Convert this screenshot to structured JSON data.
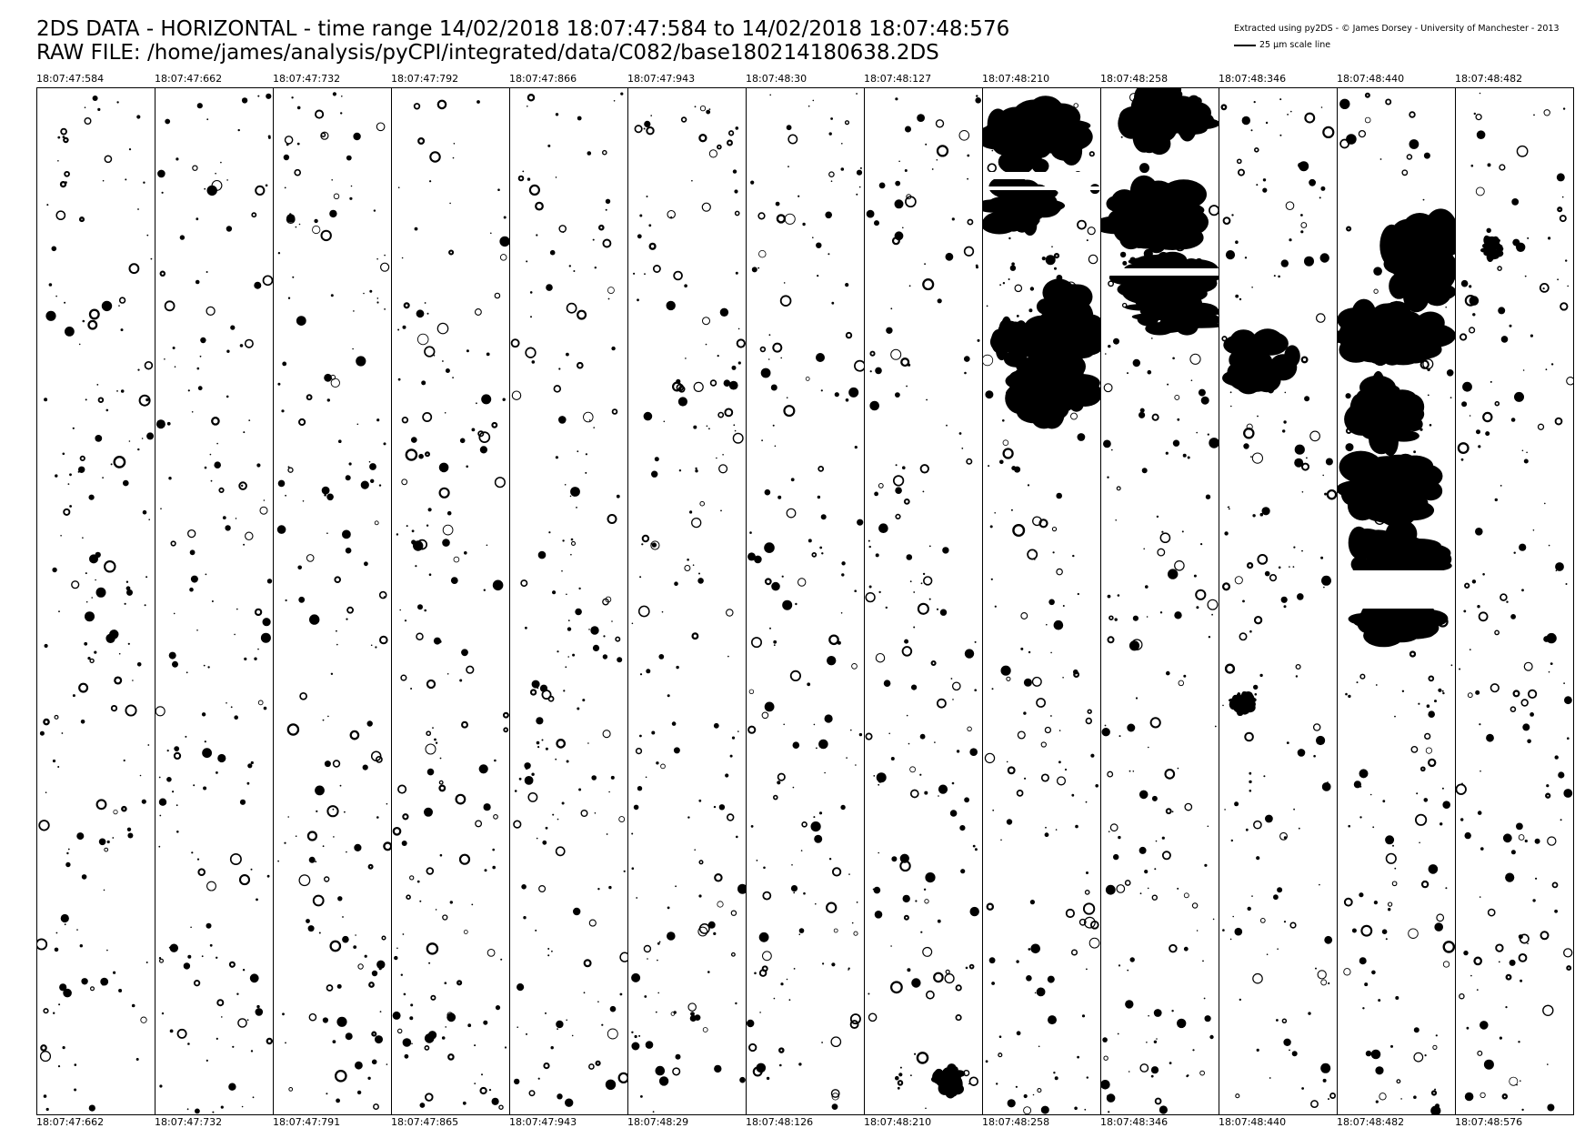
{
  "header": {
    "title_line1": "2DS DATA - HORIZONTAL - time range 14/02/2018 18:07:47:584 to 14/02/2018 18:07:48:576",
    "title_line2": "RAW FILE: /home/james/analysis/pyCPI/integrated/data/C082/base180214180638.2DS",
    "credit": "Extracted using py2DS - © James Dorsey - University of Manchester - 2013",
    "scale_label": "25 µm scale line"
  },
  "colors": {
    "particle": "#000000",
    "background": "#ffffff"
  },
  "strips": [
    {
      "start": "18:07:47:584",
      "end": "18:07:47:662"
    },
    {
      "start": "18:07:47:662",
      "end": "18:07:47:732"
    },
    {
      "start": "18:07:47:732",
      "end": "18:07:47:791"
    },
    {
      "start": "18:07:47:792",
      "end": "18:07:47:865"
    },
    {
      "start": "18:07:47:866",
      "end": "18:07:47:943"
    },
    {
      "start": "18:07:47:943",
      "end": "18:07:48:29"
    },
    {
      "start": "18:07:48:30",
      "end": "18:07:48:126"
    },
    {
      "start": "18:07:48:127",
      "end": "18:07:48:210"
    },
    {
      "start": "18:07:48:210",
      "end": "18:07:48:258"
    },
    {
      "start": "18:07:48:258",
      "end": "18:07:48:346"
    },
    {
      "start": "18:07:48:346",
      "end": "18:07:48:440"
    },
    {
      "start": "18:07:48:440",
      "end": "18:07:48:482"
    },
    {
      "start": "18:07:48:482",
      "end": "18:07:48:576"
    }
  ]
}
